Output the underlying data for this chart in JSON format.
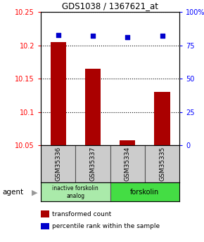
{
  "title": "GDS1038 / 1367621_at",
  "samples": [
    "GSM35336",
    "GSM35337",
    "GSM35334",
    "GSM35335"
  ],
  "bar_values": [
    10.205,
    10.165,
    10.057,
    10.13
  ],
  "bar_bottom": 10.05,
  "percentile_values": [
    83,
    82,
    81,
    82
  ],
  "ylim_left": [
    10.05,
    10.25
  ],
  "ylim_right": [
    0,
    100
  ],
  "yticks_left": [
    10.05,
    10.1,
    10.15,
    10.2,
    10.25
  ],
  "yticks_right": [
    0,
    25,
    50,
    75,
    100
  ],
  "ytick_labels_left": [
    "10.05",
    "10.1",
    "10.15",
    "10.2",
    "10.25"
  ],
  "ytick_labels_right": [
    "0",
    "25",
    "50",
    "75",
    "100%"
  ],
  "bar_color": "#aa0000",
  "dot_color": "#0000cc",
  "groups": [
    {
      "label": "inactive forskolin\nanalog",
      "color": "#aaeaaa",
      "samples": [
        0,
        1
      ]
    },
    {
      "label": "forskolin",
      "color": "#44dd44",
      "samples": [
        2,
        3
      ]
    }
  ],
  "agent_label": "agent",
  "legend_items": [
    {
      "color": "#aa0000",
      "label": "transformed count"
    },
    {
      "color": "#0000cc",
      "label": "percentile rank within the sample"
    }
  ]
}
